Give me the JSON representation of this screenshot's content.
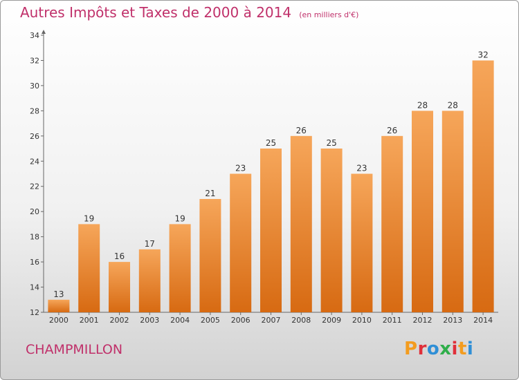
{
  "header": {
    "title": "Autres Impôts et Taxes de 2000 à 2014",
    "subtitle": "(en milliers d'€)"
  },
  "footer": {
    "commune": "CHAMPMILLON",
    "logo": "Proxiti",
    "logo_colors": [
      "#f39c1f",
      "#e0303a",
      "#2f8fd6",
      "#2fae4a",
      "#e0303a",
      "#f39c1f",
      "#2f8fd6"
    ]
  },
  "colors": {
    "bar_light": "#f6a65a",
    "bar_dark": "#d76a12",
    "accent": "#c0306a"
  },
  "chart_data": {
    "type": "bar",
    "categories": [
      "2000",
      "2001",
      "2002",
      "2003",
      "2004",
      "2005",
      "2006",
      "2007",
      "2008",
      "2009",
      "2010",
      "2011",
      "2012",
      "2013",
      "2014"
    ],
    "values": [
      13,
      19,
      16,
      17,
      19,
      21,
      23,
      25,
      26,
      25,
      23,
      26,
      28,
      28,
      32
    ],
    "title": "Autres Impôts et Taxes de 2000 à 2014",
    "subtitle": "(en milliers d'€)",
    "ylim": [
      12,
      34
    ],
    "yticks": [
      12,
      14,
      16,
      18,
      20,
      22,
      24,
      26,
      28,
      30,
      32,
      34
    ],
    "grid": false,
    "legend": "none"
  }
}
